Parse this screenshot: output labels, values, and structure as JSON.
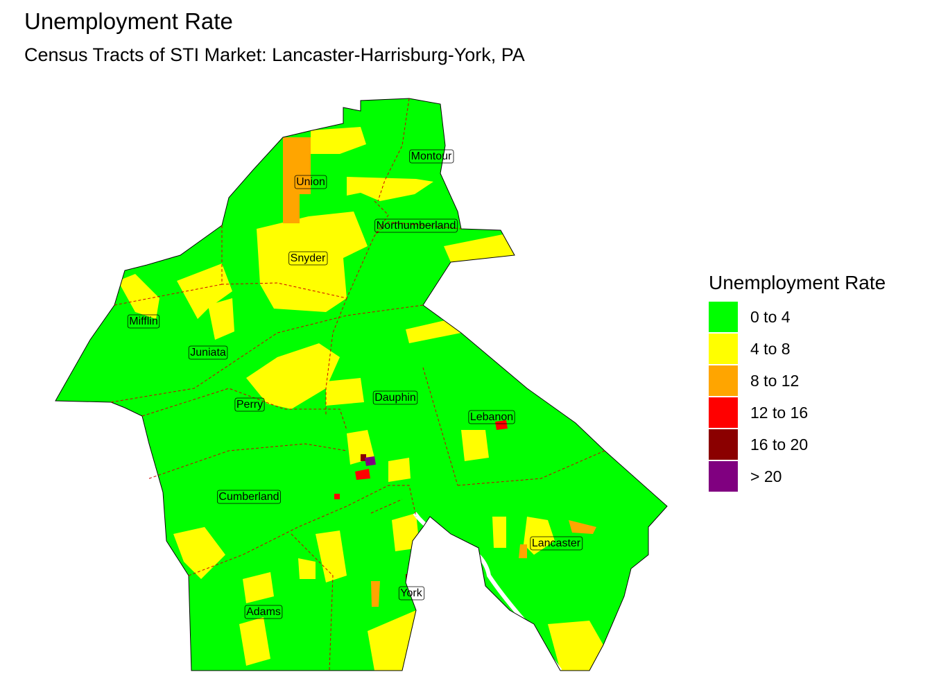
{
  "title": "Unemployment Rate",
  "subtitle": "Census Tracts of STI Market: Lancaster-Harrisburg-York, PA",
  "legend": {
    "title": "Unemployment Rate",
    "items": [
      {
        "label": "0 to 4",
        "color": "#00ff00"
      },
      {
        "label": "4 to 8",
        "color": "#ffff00"
      },
      {
        "label": "8 to 12",
        "color": "#ffa500"
      },
      {
        "label": "12 to 16",
        "color": "#ff0000"
      },
      {
        "label": "16 to 20",
        "color": "#8b0000"
      },
      {
        "label": "> 20",
        "color": "#800080"
      }
    ]
  },
  "counties": [
    "Montour",
    "Union",
    "Northumberland",
    "Snyder",
    "Mifflin",
    "Juniata",
    "Perry",
    "Dauphin",
    "Lebanon",
    "Cumberland",
    "Lancaster",
    "York",
    "Adams"
  ],
  "colors": {
    "border": "#cc0000",
    "outline": "#000000",
    "river": "#ffffff"
  }
}
